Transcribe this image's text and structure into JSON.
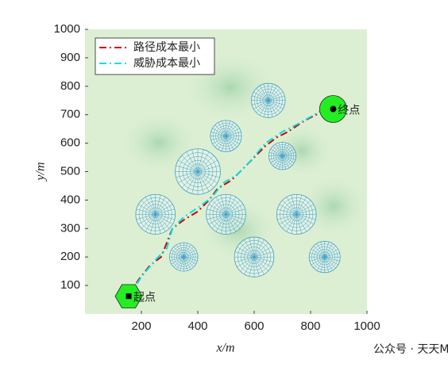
{
  "chart_data": {
    "type": "path-planning",
    "xlabel": "x/m",
    "ylabel": "y/m",
    "xlim": [
      0,
      1000
    ],
    "ylim": [
      0,
      1000
    ],
    "xticks": [
      200,
      400,
      600,
      800,
      1000
    ],
    "yticks": [
      100,
      200,
      300,
      400,
      500,
      600,
      700,
      800,
      900,
      1000
    ],
    "threat_color": "#3f9fc4",
    "threats": [
      {
        "x": 650,
        "y": 750,
        "r": 60
      },
      {
        "x": 500,
        "y": 625,
        "r": 55
      },
      {
        "x": 700,
        "y": 555,
        "r": 48
      },
      {
        "x": 400,
        "y": 500,
        "r": 80
      },
      {
        "x": 250,
        "y": 350,
        "r": 70
      },
      {
        "x": 500,
        "y": 350,
        "r": 70
      },
      {
        "x": 750,
        "y": 350,
        "r": 70
      },
      {
        "x": 350,
        "y": 200,
        "r": 50
      },
      {
        "x": 600,
        "y": 200,
        "r": 70
      },
      {
        "x": 850,
        "y": 200,
        "r": 55
      }
    ],
    "start": {
      "label": "起点",
      "x": 155,
      "y": 62
    },
    "goal": {
      "label": "终点",
      "x": 880,
      "y": 720
    },
    "series": [
      {
        "name": "路径成本最小",
        "color": "#d40000",
        "dash": "9 4 2 4",
        "x": [
          155,
          190,
          230,
          270,
          290,
          310,
          350,
          400,
          440,
          470,
          520,
          570,
          600,
          640,
          680,
          720,
          780,
          840,
          880
        ],
        "y": [
          62,
          120,
          170,
          200,
          250,
          300,
          330,
          360,
          400,
          440,
          470,
          520,
          550,
          590,
          620,
          640,
          680,
          710,
          720
        ]
      },
      {
        "name": "威胁成本最小",
        "color": "#00e0ea",
        "dash": "9 4 2 4",
        "x": [
          155,
          200,
          250,
          290,
          310,
          350,
          410,
          450,
          490,
          540,
          580,
          640,
          700,
          760,
          830,
          880
        ],
        "y": [
          62,
          130,
          190,
          230,
          300,
          340,
          380,
          410,
          460,
          490,
          530,
          600,
          640,
          670,
          710,
          720
        ]
      }
    ],
    "legend": "upper left",
    "watermark": "公众号 · 天天Matlab"
  }
}
